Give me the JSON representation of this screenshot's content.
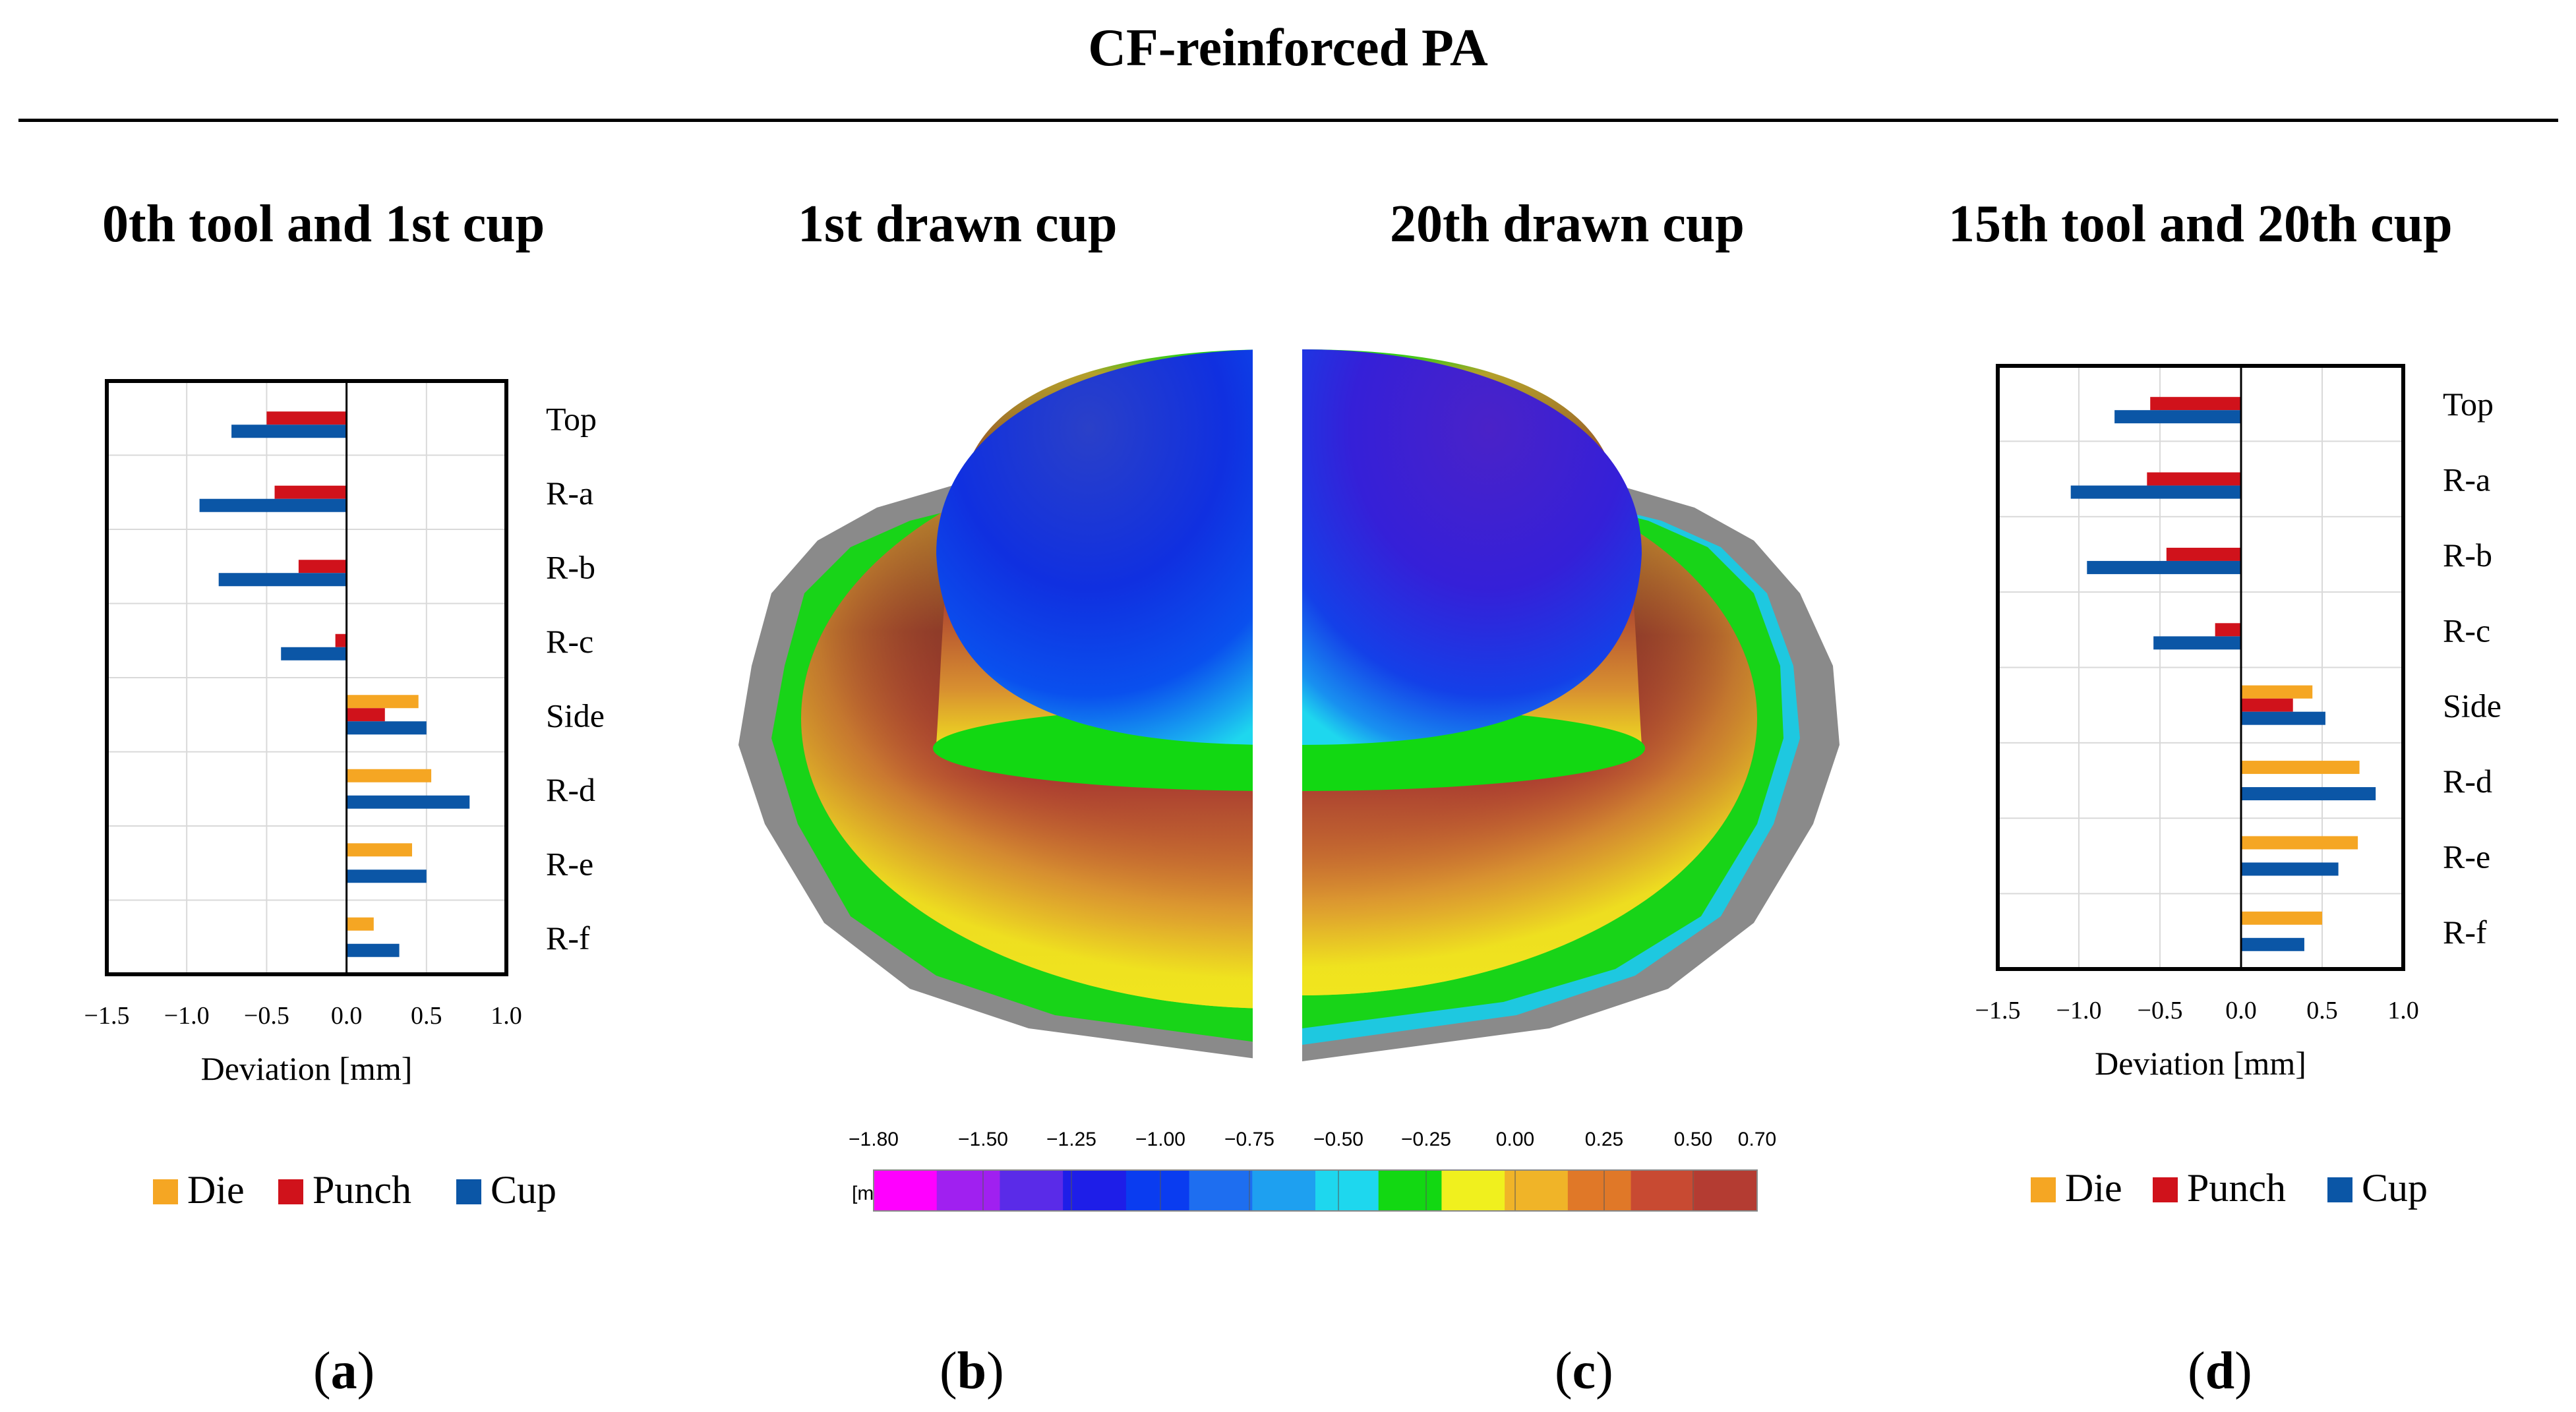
{
  "title": "CF-reinforced PA",
  "panels": [
    {
      "title": "0th tool and 1st cup",
      "label_letter": "a"
    },
    {
      "title": "1st drawn cup",
      "label_letter": "b"
    },
    {
      "title": "20th drawn cup",
      "label_letter": "c"
    },
    {
      "title": "15th tool and 20th cup",
      "label_letter": "d"
    }
  ],
  "colorbar": {
    "unit": "[mm]",
    "ticks": [
      "−1.80",
      "−1.50",
      "−1.25",
      "−1.00",
      "−0.75",
      "−0.50",
      "−0.25",
      "0.00",
      "0.25",
      "0.50",
      "0.70"
    ],
    "colors": [
      "#ff00ff",
      "#a020f0",
      "#5a2be8",
      "#1e1ee8",
      "#0a3cf0",
      "#1e6ef0",
      "#1ea0f0",
      "#1ed7ee",
      "#12d812",
      "#f0f01e",
      "#f0b428",
      "#e07828",
      "#c84a32",
      "#b43c32"
    ]
  },
  "colors": {
    "die": "#f5a623",
    "punch": "#d0121b",
    "cup": "#0b56a6"
  },
  "chart_data": [
    {
      "type": "bar",
      "orientation": "horizontal",
      "title": "0th tool and 1st cup",
      "categories": [
        "Top",
        "R-a",
        "R-b",
        "R-c",
        "Side",
        "R-d",
        "R-e",
        "R-f"
      ],
      "series": [
        {
          "name": "Die",
          "values": [
            null,
            null,
            null,
            null,
            0.45,
            0.53,
            0.41,
            0.17
          ]
        },
        {
          "name": "Punch",
          "values": [
            -0.5,
            -0.45,
            -0.3,
            -0.07,
            0.24,
            null,
            null,
            null
          ]
        },
        {
          "name": "Cup",
          "values": [
            -0.72,
            -0.92,
            -0.8,
            -0.41,
            0.5,
            0.77,
            0.5,
            0.33
          ]
        }
      ],
      "xlabel": "Deviation [mm]",
      "xlim": [
        -1.5,
        1.0
      ],
      "xticks": [
        "−1.5",
        "−1.0",
        "−0.5",
        "0.0",
        "0.5",
        "1.0"
      ],
      "legend": [
        "Die",
        "Punch",
        "Cup"
      ]
    },
    {
      "type": "bar",
      "orientation": "horizontal",
      "title": "15th tool and 20th cup",
      "categories": [
        "Top",
        "R-a",
        "R-b",
        "R-c",
        "Side",
        "R-d",
        "R-e",
        "R-f"
      ],
      "series": [
        {
          "name": "Die",
          "values": [
            null,
            null,
            null,
            null,
            0.44,
            0.73,
            0.72,
            0.5
          ]
        },
        {
          "name": "Punch",
          "values": [
            -0.56,
            -0.58,
            -0.46,
            -0.16,
            0.32,
            null,
            null,
            null
          ]
        },
        {
          "name": "Cup",
          "values": [
            -0.78,
            -1.05,
            -0.95,
            -0.54,
            0.52,
            0.83,
            0.6,
            0.39
          ]
        }
      ],
      "xlabel": "Deviation [mm]",
      "xlim": [
        -1.5,
        1.0
      ],
      "xticks": [
        "−1.5",
        "−1.0",
        "−0.5",
        "0.0",
        "0.5",
        "1.0"
      ],
      "legend": [
        "Die",
        "Punch",
        "Cup"
      ]
    }
  ]
}
